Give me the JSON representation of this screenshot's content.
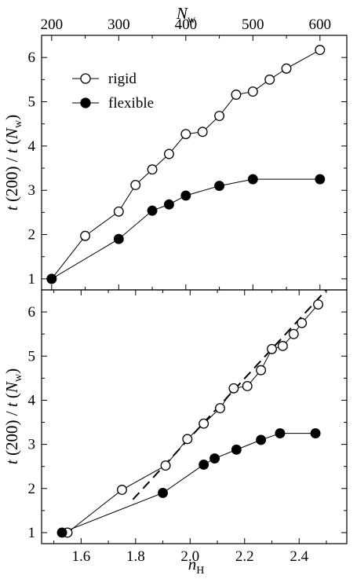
{
  "chart_data": [
    {
      "type": "line",
      "panel": "top",
      "xlabel": "N_w",
      "ylabel": "t (200) / t (N_w)",
      "xlim": [
        185,
        640
      ],
      "ylim": [
        0.75,
        6.5
      ],
      "xticks": [
        200,
        300,
        400,
        500,
        600
      ],
      "yticks": [
        1,
        2,
        3,
        4,
        5,
        6
      ],
      "x_axis_position": "top",
      "legend_position": "top-left",
      "series": [
        {
          "name": "rigid",
          "marker": "open-circle",
          "x": [
            200,
            250,
            300,
            325,
            350,
            375,
            400,
            425,
            450,
            475,
            500,
            525,
            550,
            600
          ],
          "y": [
            1.0,
            1.97,
            2.52,
            3.12,
            3.47,
            3.82,
            4.27,
            4.32,
            4.68,
            5.16,
            5.23,
            5.5,
            5.75,
            6.17
          ]
        },
        {
          "name": "flexible",
          "marker": "filled-circle",
          "x": [
            200,
            300,
            350,
            375,
            400,
            450,
            500,
            600
          ],
          "y": [
            1.0,
            1.9,
            2.54,
            2.68,
            2.88,
            3.1,
            3.25,
            3.25
          ]
        }
      ]
    },
    {
      "type": "line",
      "panel": "bottom",
      "xlabel": "n_H",
      "ylabel": "t (200) / t (N_w)",
      "xlim": [
        1.455,
        2.575
      ],
      "ylim": [
        0.75,
        6.5
      ],
      "xticks": [
        1.6,
        1.8,
        2.0,
        2.2,
        2.4
      ],
      "yticks": [
        1,
        2,
        3,
        4,
        5,
        6
      ],
      "series": [
        {
          "name": "rigid",
          "marker": "open-circle",
          "x": [
            1.55,
            1.75,
            1.91,
            1.99,
            2.05,
            2.11,
            2.16,
            2.21,
            2.26,
            2.3,
            2.34,
            2.38,
            2.41,
            2.47
          ],
          "y": [
            1.0,
            1.97,
            2.52,
            3.12,
            3.47,
            3.82,
            4.27,
            4.32,
            4.68,
            5.16,
            5.23,
            5.5,
            5.75,
            6.17
          ]
        },
        {
          "name": "flexible",
          "marker": "filled-circle",
          "x": [
            1.53,
            1.9,
            2.05,
            2.09,
            2.17,
            2.26,
            2.33,
            2.46
          ],
          "y": [
            1.0,
            1.9,
            2.54,
            2.68,
            2.88,
            3.1,
            3.25,
            3.25
          ]
        },
        {
          "name": "fit",
          "style": "dashed",
          "x": [
            1.79,
            2.5
          ],
          "y": [
            1.75,
            6.5
          ]
        }
      ]
    }
  ],
  "labels": {
    "top_xlabel": {
      "main": "N",
      "sub": "w"
    },
    "bottom_xlabel": {
      "main": "n",
      "sub": "H"
    },
    "ylabel": {
      "italic": "t",
      "mid": " (200) / ",
      "italic2": "t",
      "open": " (",
      "main": "N",
      "sub": "w",
      "close": ")"
    },
    "legend": [
      {
        "label": "rigid",
        "marker": "open-circle"
      },
      {
        "label": "flexible",
        "marker": "filled-circle"
      }
    ]
  }
}
